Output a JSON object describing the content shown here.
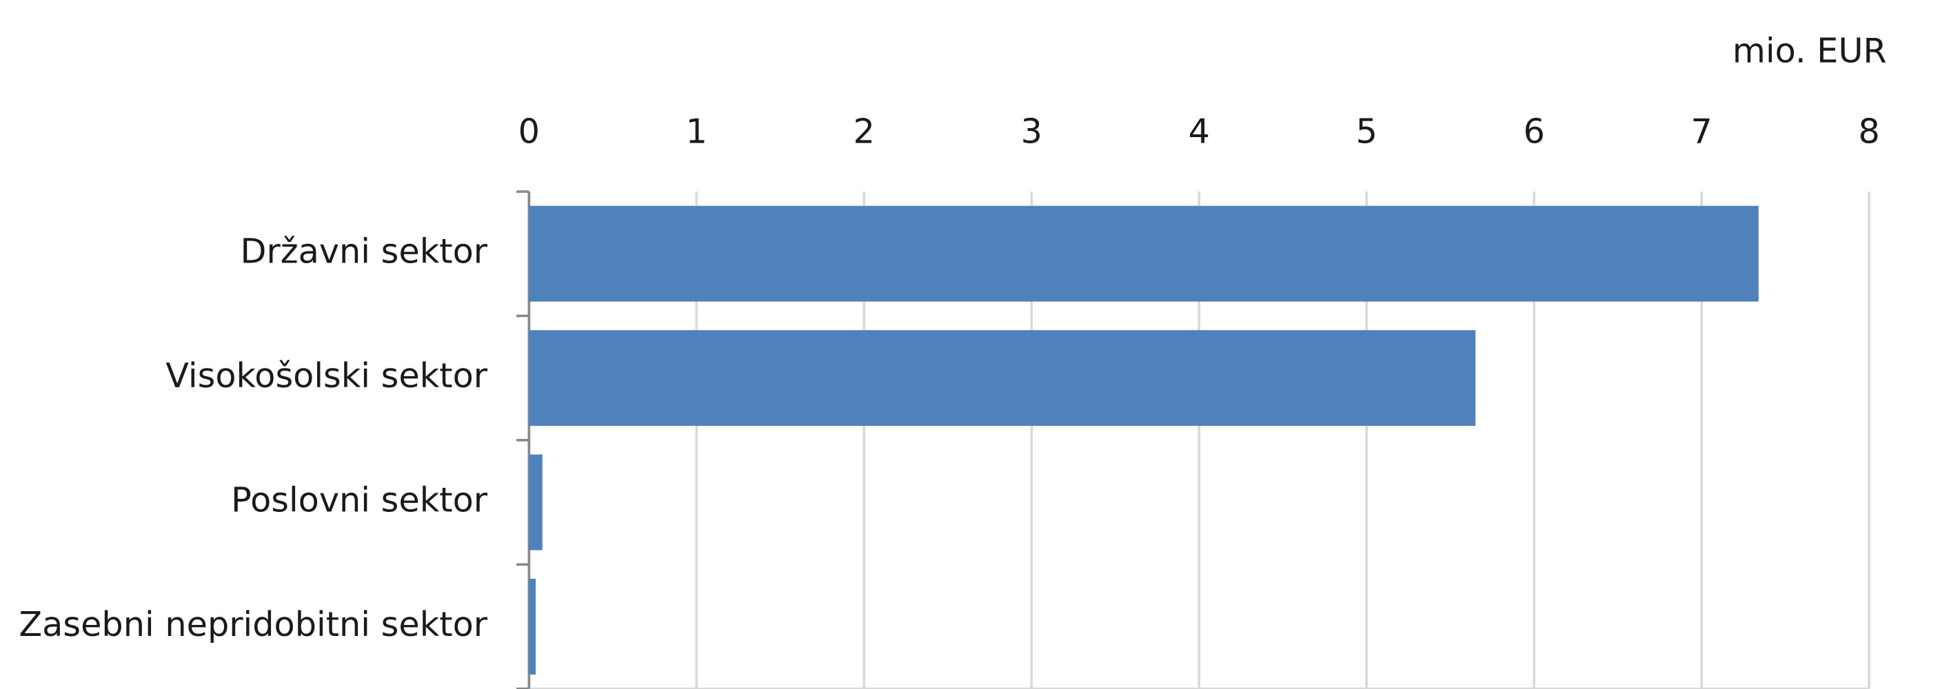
{
  "chart_data": {
    "type": "bar",
    "orientation": "horizontal",
    "axis_label": "mio. EUR",
    "categories": [
      "Državni sektor",
      "Visokošolski sektor",
      "Poslovni sektor",
      "Zasebni nepridobitni sektor"
    ],
    "values": [
      7.34,
      5.65,
      0.08,
      0.04
    ],
    "color": "#4f81bd",
    "xlim": [
      0,
      8
    ],
    "xticks": [
      0,
      1,
      2,
      3,
      4,
      5,
      6,
      7,
      8
    ],
    "grid": true
  }
}
